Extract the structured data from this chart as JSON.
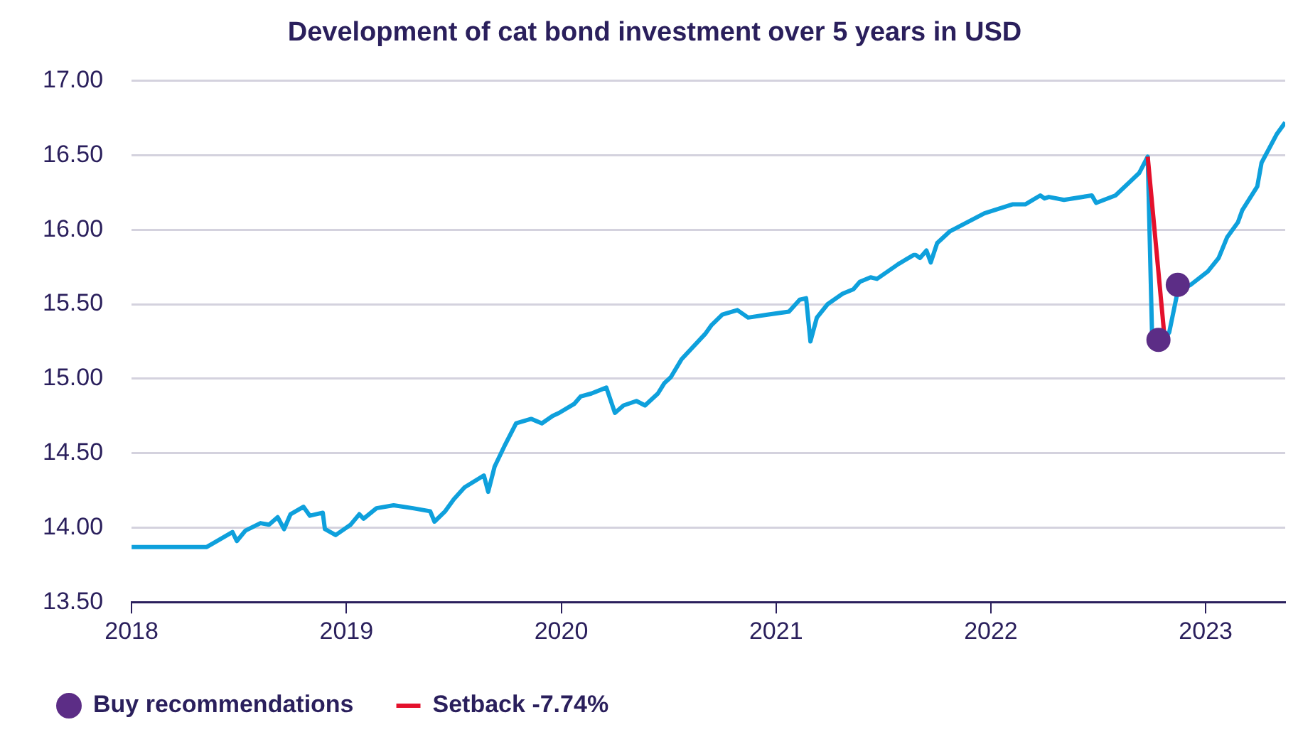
{
  "chart_data": {
    "type": "line",
    "title": "Development of cat bond investment over 5 years in USD",
    "xlim": [
      2018,
      2023.37
    ],
    "xticks": [
      2018,
      2019,
      2020,
      2021,
      2022,
      2023
    ],
    "ylim": [
      13.5,
      17
    ],
    "yticks": [
      {
        "value": 13.5,
        "label": "13.50"
      },
      {
        "value": 14,
        "label": "14.00"
      },
      {
        "value": 14.5,
        "label": "14.50"
      },
      {
        "value": 15,
        "label": "15.00"
      },
      {
        "value": 15.5,
        "label": "15.50"
      },
      {
        "value": 16,
        "label": "16.00"
      },
      {
        "value": 16.5,
        "label": "16.50"
      },
      {
        "value": 17,
        "label": "17.00"
      }
    ],
    "grid": "y",
    "legend": "bottom",
    "series": [
      {
        "type": "line",
        "color": "#0ea0dc",
        "x": [
          2018.0,
          2018.35,
          2018.47,
          2018.49,
          2018.53,
          2018.6,
          2018.64,
          2018.68,
          2018.71,
          2018.74,
          2018.8,
          2018.83,
          2018.89,
          2018.9,
          2018.95,
          2018.98,
          2019.02,
          2019.06,
          2019.08,
          2019.14,
          2019.22,
          2019.31,
          2019.39,
          2019.41,
          2019.46,
          2019.5,
          2019.55,
          2019.64,
          2019.66,
          2019.69,
          2019.74,
          2019.79,
          2019.86,
          2019.91,
          2019.96,
          2019.99,
          2020.06,
          2020.09,
          2020.14,
          2020.21,
          2020.25,
          2020.29,
          2020.35,
          2020.39,
          2020.45,
          2020.48,
          2020.51,
          2020.56,
          2020.67,
          2020.7,
          2020.75,
          2020.82,
          2020.87,
          2020.96,
          2021.06,
          2021.11,
          2021.14,
          2021.16,
          2021.19,
          2021.24,
          2021.31,
          2021.36,
          2021.39,
          2021.44,
          2021.47,
          2021.55,
          2021.57,
          2021.64,
          2021.65,
          2021.67,
          2021.7,
          2021.72,
          2021.75,
          2021.81,
          2021.97,
          2022.1,
          2022.16,
          2022.23,
          2022.25,
          2022.27,
          2022.34,
          2022.47,
          2022.49,
          2022.58,
          2022.69,
          2022.73,
          2022.75,
          2022.8,
          2022.83,
          2022.87,
          2022.93,
          2023.01,
          2023.06,
          2023.1,
          2023.15,
          2023.17,
          2023.24,
          2023.26,
          2023.33,
          2023.37
        ],
        "values": [
          13.87,
          13.87,
          13.97,
          13.91,
          13.98,
          14.03,
          14.02,
          14.07,
          13.99,
          14.09,
          14.14,
          14.08,
          14.1,
          13.99,
          13.95,
          13.98,
          14.02,
          14.09,
          14.06,
          14.13,
          14.15,
          14.13,
          14.11,
          14.04,
          14.11,
          14.19,
          14.27,
          14.35,
          14.24,
          14.41,
          14.56,
          14.7,
          14.73,
          14.7,
          14.75,
          14.77,
          14.83,
          14.88,
          14.9,
          14.94,
          14.77,
          14.82,
          14.85,
          14.82,
          14.9,
          14.97,
          15.01,
          15.13,
          15.3,
          15.36,
          15.43,
          15.46,
          15.41,
          15.43,
          15.45,
          15.53,
          15.54,
          15.25,
          15.41,
          15.5,
          15.57,
          15.6,
          15.65,
          15.68,
          15.67,
          15.75,
          15.77,
          15.83,
          15.83,
          15.81,
          15.86,
          15.78,
          15.91,
          15.99,
          16.11,
          16.17,
          16.17,
          16.23,
          16.21,
          16.22,
          16.2,
          16.23,
          16.18,
          16.23,
          16.38,
          16.49,
          15.31,
          15.25,
          15.31,
          15.59,
          15.63,
          15.72,
          15.81,
          15.95,
          16.05,
          16.13,
          16.29,
          16.45,
          16.64,
          16.72
        ]
      },
      {
        "type": "line",
        "name": "Setback -7.74%",
        "color": "#e4112c",
        "x": [
          2022.73,
          2022.81
        ],
        "values": [
          16.49,
          15.25
        ]
      },
      {
        "type": "scatter",
        "name": "Buy recommendations",
        "color": "#5c2d86",
        "marker": "circle",
        "x": [
          2022.78,
          2022.87
        ],
        "values": [
          15.26,
          15.63
        ]
      }
    ]
  }
}
